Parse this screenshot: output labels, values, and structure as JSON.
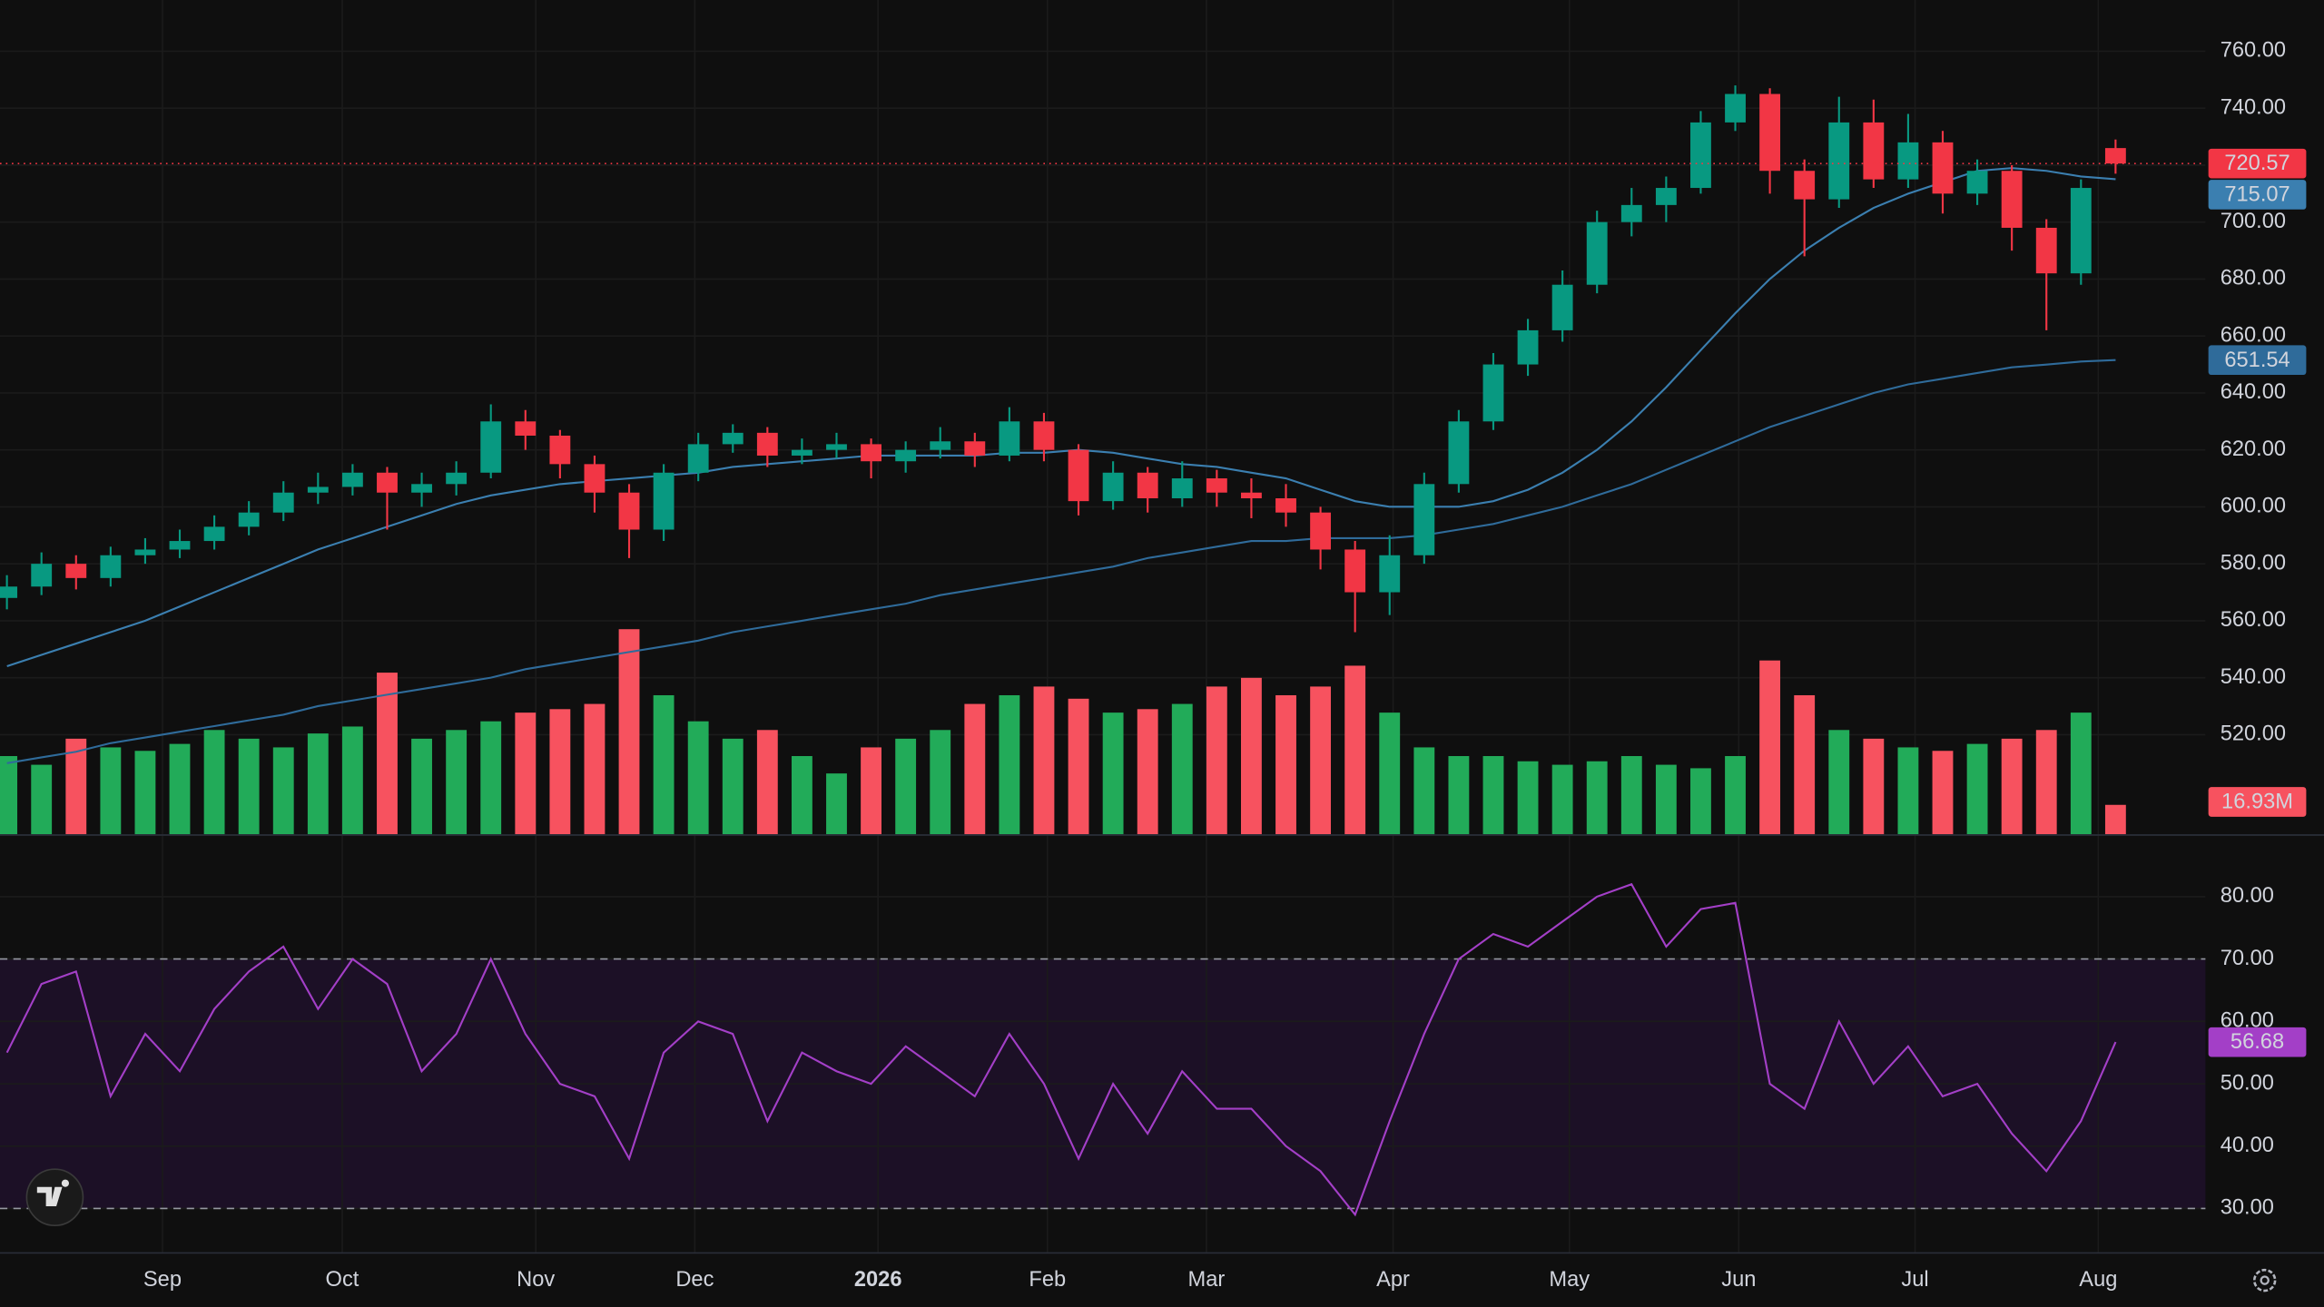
{
  "chart_data": {
    "type": "candlestick",
    "xlim": [
      -0.2,
      63.6
    ],
    "xticks": [
      {
        "value": 4.5,
        "label": "Sep"
      },
      {
        "value": 9.7,
        "label": "Oct"
      },
      {
        "value": 15.3,
        "label": "Nov"
      },
      {
        "value": 19.9,
        "label": "Dec"
      },
      {
        "value": 25.2,
        "label": "2026"
      },
      {
        "value": 30.1,
        "label": "Feb"
      },
      {
        "value": 34.7,
        "label": "Mar"
      },
      {
        "value": 40.1,
        "label": "Apr"
      },
      {
        "value": 45.2,
        "label": "May"
      },
      {
        "value": 50.1,
        "label": "Jun"
      },
      {
        "value": 55.2,
        "label": "Jul"
      },
      {
        "value": 60.5,
        "label": "Aug"
      }
    ],
    "ylim": [
      485,
      778
    ],
    "yticks": [
      {
        "value": 520,
        "label": "520.00"
      },
      {
        "value": 540,
        "label": "540.00"
      },
      {
        "value": 560,
        "label": "560.00"
      },
      {
        "value": 580,
        "label": "580.00"
      },
      {
        "value": 600,
        "label": "600.00"
      },
      {
        "value": 620,
        "label": "620.00"
      },
      {
        "value": 640,
        "label": "640.00"
      },
      {
        "value": 660,
        "label": "660.00"
      },
      {
        "value": 680,
        "label": "680.00"
      },
      {
        "value": 700,
        "label": "700.00"
      },
      {
        "value": 720,
        "label": "720.00"
      },
      {
        "value": 740,
        "label": "740.00"
      },
      {
        "value": 760,
        "label": "760.00"
      }
    ],
    "grid": true,
    "up_color": "#089981",
    "down_color": "#f23645",
    "open": [
      568,
      572,
      580,
      575,
      583,
      585,
      588,
      593,
      598,
      605,
      607,
      612,
      605,
      608,
      612,
      630,
      625,
      615,
      605,
      592,
      612,
      622,
      626,
      618,
      620,
      622,
      616,
      620,
      623,
      618,
      630,
      620,
      602,
      612,
      603,
      610,
      605,
      603,
      598,
      585,
      570,
      583,
      608,
      630,
      650,
      662,
      678,
      700,
      706,
      712,
      735,
      745,
      718,
      708,
      735,
      715,
      728,
      710,
      718,
      698,
      682,
      726
    ],
    "high": [
      576,
      584,
      583,
      586,
      589,
      592,
      597,
      602,
      609,
      612,
      615,
      614,
      612,
      616,
      636,
      634,
      627,
      618,
      608,
      615,
      626,
      629,
      628,
      624,
      626,
      624,
      623,
      628,
      626,
      635,
      633,
      622,
      616,
      614,
      616,
      613,
      610,
      608,
      600,
      588,
      590,
      612,
      634,
      654,
      666,
      683,
      704,
      712,
      716,
      739,
      748,
      747,
      722,
      744,
      743,
      738,
      732,
      722,
      720,
      701,
      715,
      729
    ],
    "low": [
      564,
      569,
      571,
      572,
      580,
      582,
      585,
      590,
      595,
      601,
      604,
      592,
      600,
      604,
      610,
      620,
      610,
      598,
      582,
      588,
      609,
      619,
      614,
      615,
      617,
      610,
      612,
      617,
      614,
      616,
      616,
      597,
      599,
      598,
      600,
      600,
      596,
      593,
      578,
      556,
      562,
      580,
      605,
      627,
      646,
      658,
      675,
      695,
      700,
      710,
      732,
      710,
      688,
      705,
      712,
      712,
      703,
      706,
      690,
      662,
      678,
      717
    ],
    "close": [
      572,
      580,
      575,
      583,
      585,
      588,
      593,
      598,
      605,
      607,
      612,
      605,
      608,
      612,
      630,
      625,
      615,
      605,
      592,
      612,
      622,
      626,
      618,
      620,
      622,
      616,
      620,
      623,
      618,
      630,
      620,
      602,
      612,
      603,
      610,
      605,
      603,
      598,
      585,
      570,
      583,
      608,
      630,
      650,
      662,
      678,
      700,
      706,
      712,
      735,
      745,
      718,
      708,
      735,
      715,
      728,
      710,
      718,
      698,
      682,
      712,
      720.57
    ],
    "moving_averages": [
      {
        "color": "#3b7fb0",
        "values": [
          544,
          548,
          552,
          556,
          560,
          565,
          570,
          575,
          580,
          585,
          589,
          593,
          597,
          601,
          604,
          606,
          608,
          609,
          610,
          611,
          612,
          614,
          615,
          616,
          617,
          618,
          618,
          618,
          618,
          619,
          619,
          620,
          619,
          617,
          615,
          614,
          612,
          610,
          606,
          602,
          600,
          600,
          600,
          602,
          606,
          612,
          620,
          630,
          642,
          655,
          668,
          680,
          690,
          698,
          705,
          710,
          714,
          718,
          719,
          718,
          716,
          715.07
        ]
      },
      {
        "color": "#2f6b9a",
        "values": [
          510,
          512,
          514,
          517,
          519,
          521,
          523,
          525,
          527,
          530,
          532,
          534,
          536,
          538,
          540,
          543,
          545,
          547,
          549,
          551,
          553,
          556,
          558,
          560,
          562,
          564,
          566,
          569,
          571,
          573,
          575,
          577,
          579,
          582,
          584,
          586,
          588,
          588,
          589,
          589,
          589,
          590,
          592,
          594,
          597,
          600,
          604,
          608,
          613,
          618,
          623,
          628,
          632,
          636,
          640,
          643,
          645,
          647,
          649,
          650,
          651,
          651.54
        ]
      }
    ],
    "volume": {
      "ylim": [
        0,
        480
      ],
      "up_color": "#22ab59",
      "down_color": "#f7525f",
      "values": [
        45,
        40,
        55,
        50,
        48,
        52,
        60,
        55,
        50,
        58,
        62,
        93,
        55,
        60,
        65,
        70,
        72,
        75,
        118,
        80,
        65,
        55,
        60,
        45,
        35,
        50,
        55,
        60,
        75,
        80,
        85,
        78,
        70,
        72,
        75,
        85,
        90,
        80,
        85,
        97,
        70,
        50,
        45,
        45,
        42,
        40,
        42,
        45,
        40,
        38,
        45,
        100,
        80,
        60,
        55,
        50,
        48,
        52,
        55,
        60,
        70,
        16.93
      ],
      "last_label": "16.93M"
    },
    "rsi": {
      "color": "#a33fc7",
      "band": [
        30,
        70
      ],
      "band_color": "#1c1026",
      "ylim": [
        23,
        90
      ],
      "yticks": [
        {
          "value": 30,
          "label": "30.00"
        },
        {
          "value": 40,
          "label": "40.00"
        },
        {
          "value": 50,
          "label": "50.00"
        },
        {
          "value": 60,
          "label": "60.00"
        },
        {
          "value": 70,
          "label": "70.00"
        },
        {
          "value": 80,
          "label": "80.00"
        }
      ],
      "values": [
        55,
        66,
        68,
        48,
        58,
        52,
        62,
        68,
        72,
        62,
        70,
        66,
        52,
        58,
        70,
        58,
        50,
        48,
        38,
        55,
        60,
        58,
        44,
        55,
        52,
        50,
        56,
        52,
        48,
        58,
        50,
        38,
        50,
        42,
        52,
        46,
        46,
        40,
        36,
        29,
        44,
        58,
        70,
        74,
        72,
        76,
        80,
        82,
        72,
        78,
        79,
        50,
        46,
        60,
        50,
        56,
        48,
        50,
        42,
        36,
        44,
        56.68
      ]
    }
  }
}
